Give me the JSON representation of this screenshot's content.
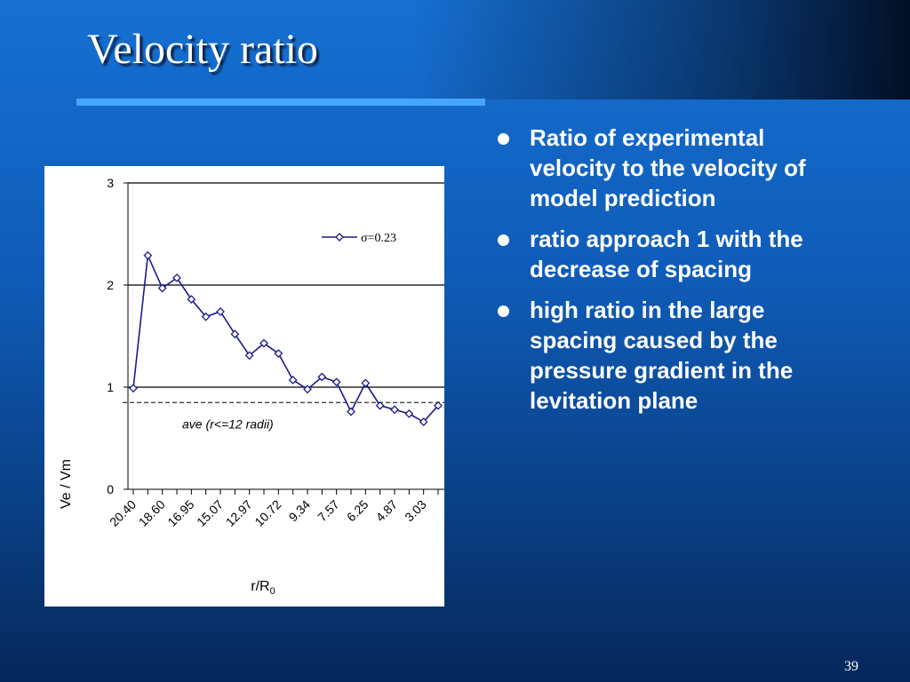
{
  "slide": {
    "title": "Velocity ratio",
    "page_number": "39"
  },
  "bullets": [
    "Ratio of experimental velocity to the velocity of model prediction",
    "ratio approach 1 with the decrease of spacing",
    "high ratio in the large spacing caused by the pressure gradient in the levitation plane"
  ],
  "chart_data": {
    "type": "line",
    "title": "",
    "xlabel": "r/R",
    "xlabel_subscript": "0",
    "ylabel": "Ve / Vm",
    "ylim": [
      0,
      3
    ],
    "yticks": [
      "0",
      "1",
      "2",
      "3"
    ],
    "grid": "horizontal at 1, 2 and 3",
    "legend_position": "top-right",
    "x_tick_labels": [
      "20.40",
      "18.60",
      "16.95",
      "15.07",
      "12.97",
      "10.72",
      "9.34",
      "7.57",
      "6.25",
      "4.87",
      "3.03"
    ],
    "series": [
      {
        "name": "σ=0.23",
        "marker": "diamond",
        "color": "#1a1a8c",
        "values": [
          0.99,
          2.29,
          1.97,
          2.07,
          1.86,
          1.69,
          1.74,
          1.52,
          1.31,
          1.43,
          1.33,
          1.07,
          0.98,
          1.1,
          1.05,
          0.76,
          1.04,
          0.82,
          0.78,
          0.74,
          0.66,
          0.82
        ]
      }
    ],
    "reference_line": {
      "value": 0.85,
      "style": "dashed",
      "label": "ave (r<=12 radii)"
    }
  }
}
